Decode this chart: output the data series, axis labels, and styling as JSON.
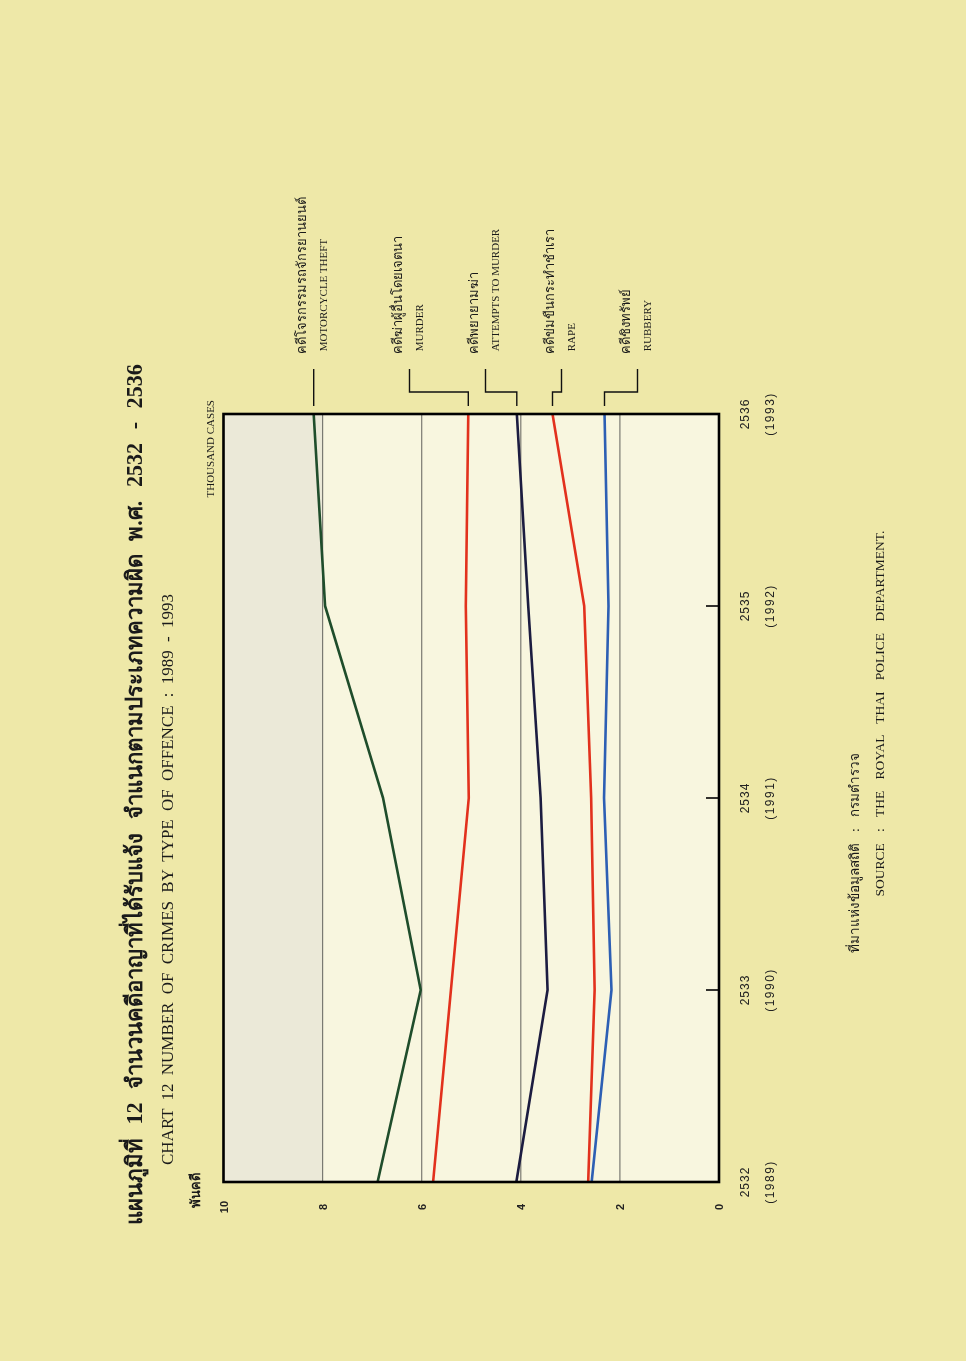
{
  "chart_data": {
    "type": "line",
    "orientation": "horizontal",
    "title": "แผนภูมิที่ 12 จำนวนคดีอาญาที่ได้รับแจ้ง จำแนกตามประเภทความผิด พ.ศ. 2532 - 2536",
    "subtitle": "CHART 12 NUMBER OF CRIMES BY TYPE OF OFFENCE : 1989 - 1993",
    "annotations": [
      "พันคดี",
      "THOUSAND CASES",
      "ที่มาแห่งข้อมูลสถิติ : กรมตำรวจ",
      "SOURCE : THE ROYAL THAI POLICE DEPARTMENT."
    ],
    "categories": [
      "2536\n(1993)",
      "2535\n(1992)",
      "2534\n(1991)",
      "2533\n(1990)",
      "2532\n(1989)"
    ],
    "xlim": [
      10,
      0
    ],
    "xticks": [
      0,
      2,
      4,
      6,
      8,
      10
    ],
    "grid": "x",
    "bands": [
      {
        "axis": "x",
        "from": 8,
        "to": 10,
        "color": "#ebe9d8"
      }
    ],
    "series": [
      {
        "name": "คดีโจรกรรมรถจักรยานยนต์\nMOTORCYCLE THEFT",
        "color": "#1f4d2b",
        "values": [
          8.18,
          7.95,
          6.78,
          6.02,
          6.89
        ]
      },
      {
        "name": "คดีฆ่าผู้อื่นโดยเจตนา\nMURDER",
        "color": "#e2311d",
        "values": [
          5.06,
          5.11,
          5.05,
          5.41,
          5.77
        ]
      },
      {
        "name": "คดีพยายามฆ่า\nATTEMPTS TO MURDER",
        "color": "#1c1c40",
        "values": [
          4.08,
          3.85,
          3.6,
          3.46,
          4.09
        ]
      },
      {
        "name": "คดีข่มขืนกระทำชำเรา\nRAPE",
        "color": "#e2311d",
        "values": [
          3.36,
          2.72,
          2.58,
          2.51,
          2.64
        ]
      },
      {
        "name": "คดีชิงทรัพย์\nRUBBERY",
        "color": "#2d5fb4",
        "values": [
          2.31,
          2.23,
          2.32,
          2.17,
          2.57
        ]
      }
    ]
  }
}
